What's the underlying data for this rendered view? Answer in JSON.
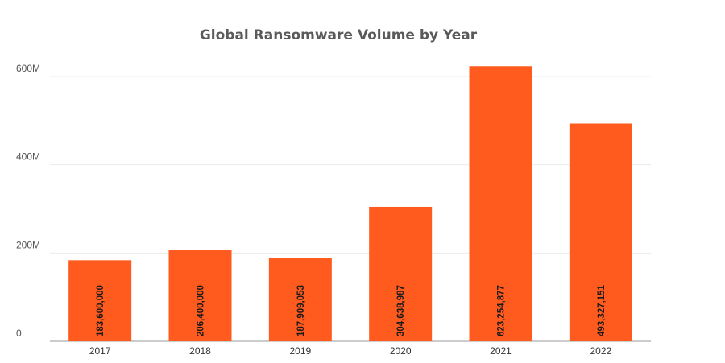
{
  "chart_data": {
    "type": "bar",
    "title": "Global Ransomware Volume by Year",
    "categories": [
      "2017",
      "2018",
      "2019",
      "2020",
      "2021",
      "2022"
    ],
    "values": [
      183600000,
      206400000,
      187909053,
      304638987,
      623254877,
      493327151
    ],
    "value_labels": [
      "183,600,000",
      "206,400,000",
      "187,909,053",
      "304,638,987",
      "623,254,877",
      "493,327,151"
    ],
    "y_ticks": [
      0,
      200000000,
      400000000,
      600000000
    ],
    "y_tick_labels": [
      "0",
      "200M",
      "400M",
      "600M"
    ],
    "ylim": [
      0,
      660000000
    ],
    "grid": true,
    "bar_color": "#ff5b1f",
    "label_color": "#1a1a1a"
  }
}
